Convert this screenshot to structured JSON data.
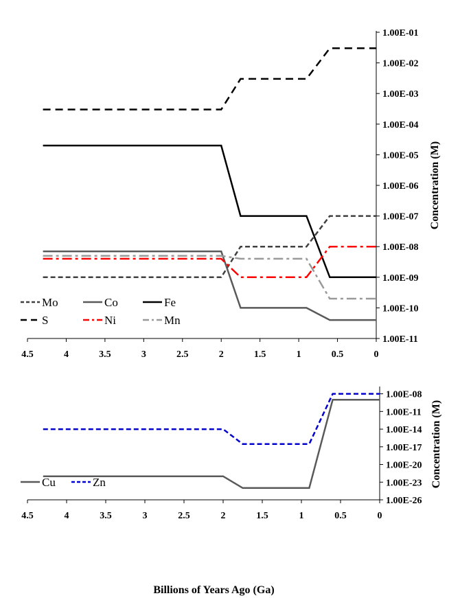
{
  "chart_data": [
    {
      "type": "line",
      "title": "",
      "xlabel": "",
      "ylabel": "Concentration (M)",
      "x_ticks": [
        "4.5",
        "4",
        "3.5",
        "3",
        "2.5",
        "2",
        "1.5",
        "1",
        "0.5",
        "0"
      ],
      "y_ticks": [
        "1.00E-11",
        "1.00E-10",
        "1.00E-09",
        "1.00E-08",
        "1.00E-07",
        "1.00E-06",
        "1.00E-05",
        "1.00E-04",
        "1.00E-03",
        "1.00E-02",
        "1.00E-01"
      ],
      "x_range": [
        4.5,
        0
      ],
      "y_scale": "log",
      "y_range_exponent": [
        -11,
        -1
      ],
      "legend_placement": "bottom-left",
      "series": [
        {
          "name": "Mo",
          "color": "#404040",
          "dash": "dashed",
          "points": [
            [
              4.3,
              1e-09
            ],
            [
              2.0,
              1e-09
            ],
            [
              1.75,
              1e-08
            ],
            [
              0.9,
              1e-08
            ],
            [
              0.6,
              1e-07
            ],
            [
              0.0,
              1e-07
            ]
          ]
        },
        {
          "name": "Co",
          "color": "#595959",
          "dash": "solid",
          "points": [
            [
              4.3,
              7e-09
            ],
            [
              2.0,
              7e-09
            ],
            [
              1.75,
              1e-10
            ],
            [
              0.9,
              1e-10
            ],
            [
              0.6,
              4e-11
            ],
            [
              0.0,
              4e-11
            ]
          ]
        },
        {
          "name": "Fe",
          "color": "#000000",
          "dash": "solid",
          "points": [
            [
              4.3,
              2e-05
            ],
            [
              2.0,
              2e-05
            ],
            [
              1.75,
              1e-07
            ],
            [
              0.9,
              1e-07
            ],
            [
              0.6,
              1e-09
            ],
            [
              0.0,
              1e-09
            ]
          ]
        },
        {
          "name": "S",
          "color": "#000000",
          "dash": "longdash",
          "points": [
            [
              4.3,
              0.0003
            ],
            [
              2.0,
              0.0003
            ],
            [
              1.75,
              0.003
            ],
            [
              0.9,
              0.003
            ],
            [
              0.6,
              0.03
            ],
            [
              0.0,
              0.03
            ]
          ]
        },
        {
          "name": "Ni",
          "color": "#ff0000",
          "dash": "dashdot",
          "points": [
            [
              4.3,
              4e-09
            ],
            [
              2.0,
              4e-09
            ],
            [
              1.75,
              1e-09
            ],
            [
              0.9,
              1e-09
            ],
            [
              0.6,
              1e-08
            ],
            [
              0.0,
              1e-08
            ]
          ]
        },
        {
          "name": "Mn",
          "color": "#999999",
          "dash": "dashdot",
          "points": [
            [
              4.3,
              5e-09
            ],
            [
              2.0,
              5e-09
            ],
            [
              1.75,
              4e-09
            ],
            [
              0.9,
              4e-09
            ],
            [
              0.6,
              2e-10
            ],
            [
              0.0,
              2e-10
            ]
          ]
        }
      ]
    },
    {
      "type": "line",
      "title": "",
      "xlabel": "Billions of Years Ago (Ga)",
      "ylabel": "Concentration (M)",
      "x_ticks": [
        "4.5",
        "4",
        "3.5",
        "3",
        "2.5",
        "2",
        "1.5",
        "1",
        "0.5",
        "0"
      ],
      "y_ticks": [
        "1.00E-26",
        "1.00E-23",
        "1.00E-20",
        "1.00E-17",
        "1.00E-14",
        "1.00E-11",
        "1.00E-08"
      ],
      "x_range": [
        4.5,
        0
      ],
      "y_scale": "log",
      "y_range_exponent": [
        -26,
        -7
      ],
      "legend_placement": "bottom-left",
      "series": [
        {
          "name": "Cu",
          "color": "#595959",
          "dash": "solid",
          "points": [
            [
              4.3,
              1e-22
            ],
            [
              2.0,
              1e-22
            ],
            [
              1.75,
              1e-24
            ],
            [
              0.9,
              1e-24
            ],
            [
              0.6,
              1e-09
            ],
            [
              0.0,
              1e-09
            ]
          ]
        },
        {
          "name": "Zn",
          "color": "#0000cc",
          "dash": "dashed",
          "points": [
            [
              4.3,
              1e-14
            ],
            [
              2.0,
              1e-14
            ],
            [
              1.75,
              3e-17
            ],
            [
              0.9,
              3e-17
            ],
            [
              0.6,
              1e-08
            ],
            [
              0.0,
              1e-08
            ]
          ]
        }
      ]
    }
  ]
}
